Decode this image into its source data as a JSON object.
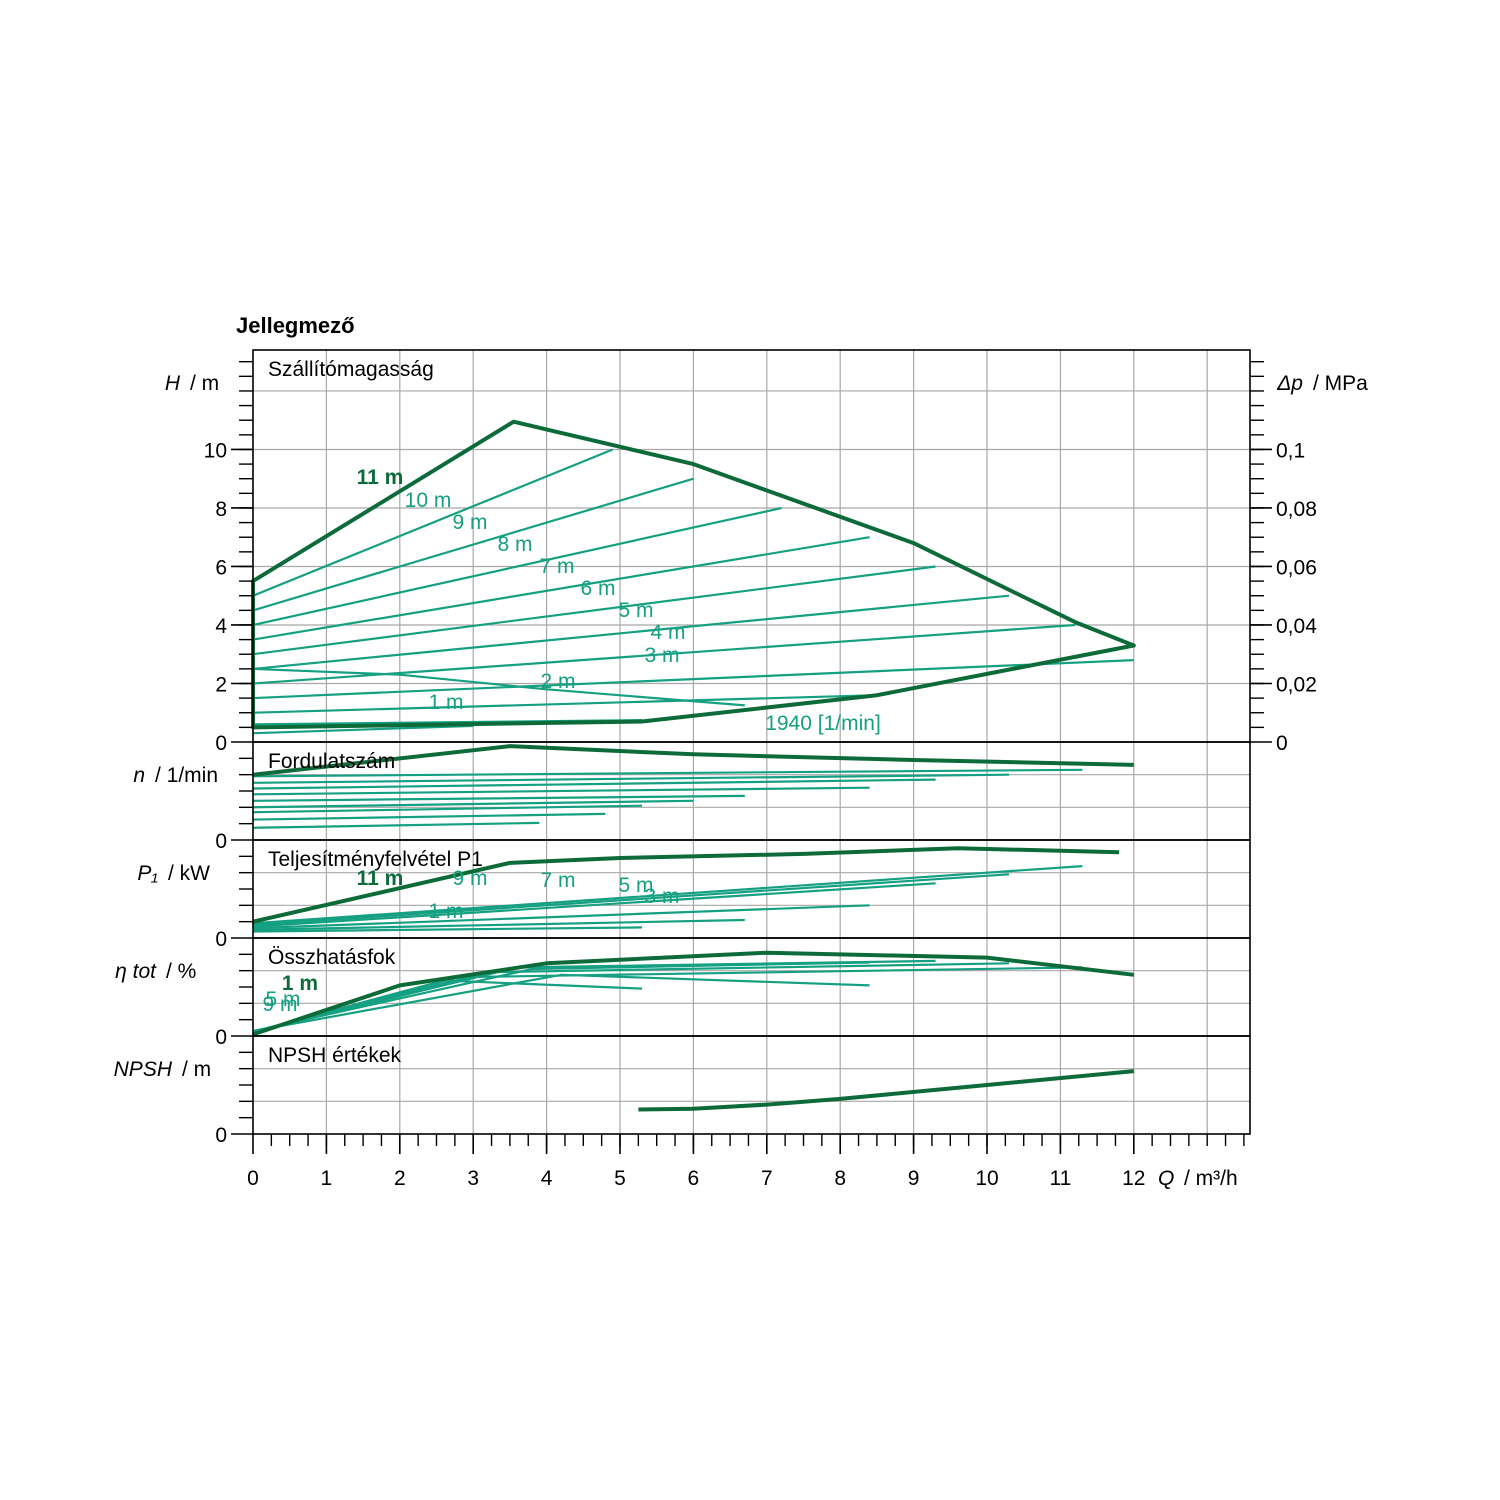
{
  "chart_data": {
    "type": "line",
    "title": "Jellegmező",
    "x_axis": {
      "symbol": "Q",
      "unit": "/ m³/h",
      "ticks": [
        "0",
        "1",
        "2",
        "3",
        "4",
        "5",
        "6",
        "7",
        "8",
        "9",
        "10",
        "11",
        "12"
      ],
      "range": [
        0,
        13.6
      ]
    },
    "colors": {
      "max_curve": "#0d6b3a",
      "curves": "#15a082",
      "grid": "#a8a8a8",
      "frame": "#000000"
    },
    "panels": [
      {
        "key": "head",
        "title": "Szállítómagasság",
        "axis_symbol": "H",
        "axis_unit": "/ m",
        "ylim": [
          0,
          13.4
        ],
        "y_ticks": [
          "0",
          "2",
          "4",
          "6",
          "8",
          "10"
        ],
        "right_axis": {
          "symbol": "Δp",
          "unit": "/ MPa",
          "ticks": [
            "0",
            "0,02",
            "0,04",
            "0,06",
            "0,08",
            "0,1"
          ]
        },
        "envelope": [
          [
            0,
            5.5
          ],
          [
            3.55,
            10.95
          ],
          [
            6,
            9.5
          ],
          [
            9,
            6.8
          ],
          [
            11.2,
            4.1
          ],
          [
            12,
            3.3
          ],
          [
            8.5,
            1.6
          ],
          [
            5.3,
            0.7
          ],
          [
            0,
            0.5
          ]
        ],
        "setpoints": [
          {
            "label": "11 m",
            "values": [
              [
                0,
                5.0
              ],
              [
                4.9,
                10.0
              ]
            ]
          },
          {
            "label": "10 m",
            "values": [
              [
                0,
                4.5
              ],
              [
                6,
                9.0
              ]
            ]
          },
          {
            "label": "9 m",
            "values": [
              [
                0,
                4.0
              ],
              [
                7.2,
                8.0
              ]
            ]
          },
          {
            "label": "8 m",
            "values": [
              [
                0,
                3.5
              ],
              [
                8.4,
                7.0
              ]
            ]
          },
          {
            "label": "7 m",
            "values": [
              [
                0,
                3.0
              ],
              [
                9.3,
                6.0
              ]
            ]
          },
          {
            "label": "6 m",
            "values": [
              [
                0,
                2.5
              ],
              [
                10.3,
                5.0
              ]
            ]
          },
          {
            "label": "5 m",
            "values": [
              [
                0,
                2.0
              ],
              [
                11.2,
                4.0
              ]
            ]
          },
          {
            "label": "4 m",
            "values": [
              [
                0,
                1.5
              ],
              [
                12,
                2.8
              ]
            ]
          },
          {
            "label": "3 m",
            "values": [
              [
                0,
                1.0
              ],
              [
                8.5,
                1.6
              ]
            ]
          },
          {
            "label": "2 m",
            "values": [
              [
                0,
                0.6
              ],
              [
                5.3,
                0.75
              ]
            ]
          },
          {
            "label": "1 m",
            "values": [
              [
                0,
                0.3
              ],
              [
                3.0,
                0.55
              ]
            ]
          }
        ],
        "speed_curve": {
          "label": "1940 [1/min]",
          "values": [
            [
              0,
              2.5
            ],
            [
              2,
              2.3
            ],
            [
              4,
              1.8
            ],
            [
              6.7,
              1.25
            ]
          ]
        }
      },
      {
        "key": "speed",
        "title": "Fordulatszám",
        "axis_symbol": "n",
        "axis_unit": "/ 1/min",
        "ylim": [
          0,
          1.2
        ],
        "y_ticks": [
          "0"
        ],
        "envelope": [
          [
            0,
            0.8
          ],
          [
            3.5,
            1.15
          ],
          [
            6,
            1.05
          ],
          [
            9,
            0.98
          ],
          [
            12,
            0.92
          ]
        ],
        "curves": [
          [
            [
              0,
              0.78
            ],
            [
              11.3,
              0.86
            ]
          ],
          [
            [
              0,
              0.7
            ],
            [
              10.3,
              0.8
            ]
          ],
          [
            [
              0,
              0.63
            ],
            [
              9.3,
              0.74
            ]
          ],
          [
            [
              0,
              0.56
            ],
            [
              8.4,
              0.64
            ]
          ],
          [
            [
              0,
              0.48
            ],
            [
              6.7,
              0.54
            ]
          ],
          [
            [
              0,
              0.4
            ],
            [
              6,
              0.48
            ]
          ],
          [
            [
              0,
              0.34
            ],
            [
              5.3,
              0.42
            ]
          ],
          [
            [
              0,
              0.25
            ],
            [
              4.8,
              0.32
            ]
          ],
          [
            [
              0,
              0.15
            ],
            [
              3.9,
              0.21
            ]
          ]
        ]
      },
      {
        "key": "power",
        "title": "Teljesítményfelvétel P1",
        "axis_symbol": "P₁",
        "axis_unit": "/ kW",
        "ylim": [
          0,
          1.2
        ],
        "y_ticks": [
          "0"
        ],
        "envelope": [
          [
            0,
            0.2
          ],
          [
            3.5,
            0.92
          ],
          [
            5,
            0.98
          ],
          [
            7.5,
            1.03
          ],
          [
            9.6,
            1.1
          ],
          [
            11.8,
            1.05
          ]
        ],
        "curves": [
          [
            [
              0,
              0.18
            ],
            [
              11.3,
              0.88
            ]
          ],
          [
            [
              0,
              0.16
            ],
            [
              10.3,
              0.78
            ]
          ],
          [
            [
              0,
              0.14
            ],
            [
              9.3,
              0.67
            ]
          ],
          [
            [
              0,
              0.12
            ],
            [
              8.4,
              0.4
            ]
          ],
          [
            [
              0,
              0.1
            ],
            [
              6.7,
              0.22
            ]
          ],
          [
            [
              0,
              0.08
            ],
            [
              5.3,
              0.13
            ]
          ]
        ],
        "labels": [
          "11 m",
          "9 m",
          "7 m",
          "5 m",
          "3 m",
          "1 m"
        ]
      },
      {
        "key": "efficiency",
        "title": "Összhatásfok",
        "axis_symbol": "η tot",
        "axis_unit": "/ %",
        "ylim": [
          0,
          1.2
        ],
        "y_ticks": [
          "0"
        ],
        "envelope": [
          [
            0,
            0.02
          ],
          [
            2,
            0.62
          ],
          [
            4,
            0.89
          ],
          [
            7,
            1.02
          ],
          [
            10,
            0.96
          ],
          [
            12,
            0.75
          ]
        ],
        "curves": [
          [
            [
              0,
              0.04
            ],
            [
              2.8,
              0.72
            ],
            [
              11.3,
              0.84
            ]
          ],
          [
            [
              0,
              0.05
            ],
            [
              3.2,
              0.78
            ],
            [
              10.3,
              0.89
            ]
          ],
          [
            [
              0,
              0.05
            ],
            [
              3.6,
              0.84
            ],
            [
              9.3,
              0.92
            ]
          ],
          [
            [
              0,
              0.06
            ],
            [
              3.8,
              0.82
            ],
            [
              8.4,
              0.9
            ]
          ],
          [
            [
              0,
              0.06
            ],
            [
              4.2,
              0.75
            ],
            [
              8.4,
              0.62
            ]
          ],
          [
            [
              0,
              0.05
            ],
            [
              2.6,
              0.68
            ],
            [
              5.3,
              0.58
            ]
          ]
        ],
        "labels": [
          "1 m",
          "5 m",
          "9 m"
        ]
      },
      {
        "key": "npsh",
        "title": "NPSH értékek",
        "axis_symbol": "NPSH",
        "axis_unit": "/ m",
        "ylim": [
          0,
          1.2
        ],
        "y_ticks": [
          "0"
        ],
        "envelope": [
          [
            5.25,
            0.3
          ],
          [
            6,
            0.31
          ],
          [
            7,
            0.36
          ],
          [
            8,
            0.43
          ],
          [
            10,
            0.6
          ],
          [
            12,
            0.77
          ]
        ]
      }
    ]
  }
}
